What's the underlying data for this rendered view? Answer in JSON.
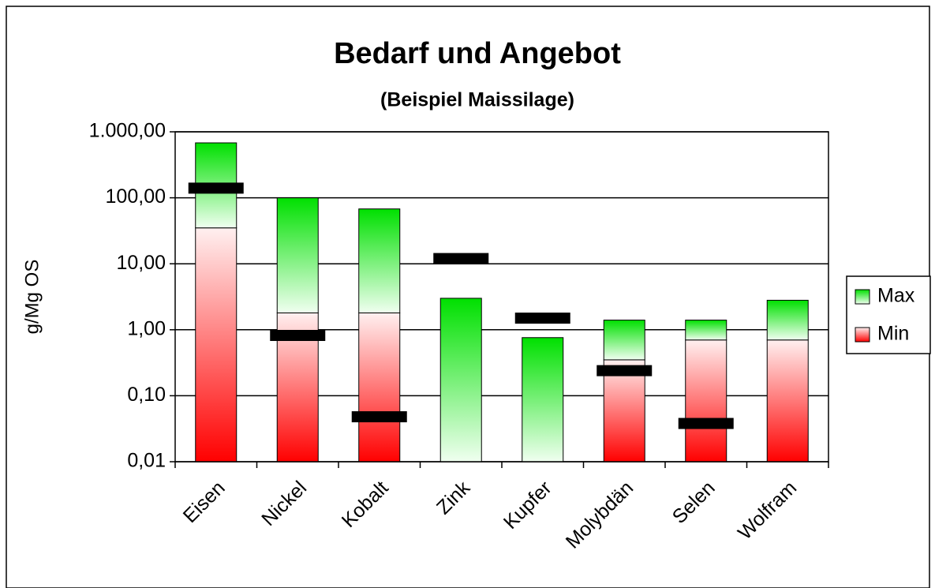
{
  "chart_data": {
    "type": "stacked_bar",
    "title": "Bedarf und Angebot",
    "subtitle": "(Beispiel Maissilage)",
    "y_label": "g/Mg OS",
    "categories": [
      "Eisen",
      "Nickel",
      "Kobalt",
      "Zink",
      "Kupfer",
      "Molybdän",
      "Selen",
      "Wolfram"
    ],
    "series": [
      {
        "name": "Min",
        "color": "#ff0000",
        "values": [
          35,
          1.8,
          1.8,
          null,
          null,
          0.35,
          0.7,
          0.7
        ]
      },
      {
        "name": "Max",
        "color": "#00e000",
        "values": [
          645,
          98,
          66,
          3.0,
          0.76,
          1.05,
          0.7,
          2.1
        ]
      }
    ],
    "markers": {
      "color": "#000000",
      "values": [
        140,
        0.82,
        0.048,
        12,
        1.5,
        0.24,
        0.038,
        null
      ]
    },
    "ylim": [
      0.01,
      1000
    ],
    "yticks": [
      {
        "value": 0.01,
        "label": "0,01"
      },
      {
        "value": 0.1,
        "label": "0,10"
      },
      {
        "value": 1,
        "label": "1,00"
      },
      {
        "value": 10,
        "label": "10,00"
      },
      {
        "value": 100,
        "label": "100,00"
      },
      {
        "value": 1000,
        "label": "1.000,00"
      }
    ],
    "log_scale": true,
    "grid": true,
    "legend_position": "right"
  }
}
